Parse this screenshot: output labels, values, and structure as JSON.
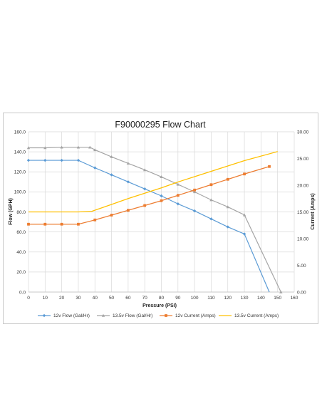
{
  "chart_data": {
    "type": "line",
    "title": "F90000295  Flow Chart",
    "xlabel": "Pressure (PSI)",
    "ylabel": "Flow (GPH)",
    "y2label": "Current (Amps)",
    "xlim": [
      0,
      160
    ],
    "ylim": [
      0,
      160
    ],
    "y2lim": [
      0,
      30
    ],
    "xticks": [
      "0",
      "10",
      "20",
      "30",
      "40",
      "50",
      "60",
      "70",
      "80",
      "90",
      "100",
      "110",
      "120",
      "130",
      "140",
      "150",
      "160"
    ],
    "yticks": [
      "0.0",
      "20.0",
      "40.0",
      "60.0",
      "80.0",
      "100.0",
      "120.0",
      "140.0",
      "160.0"
    ],
    "y2ticks": [
      "0.00",
      "5.00",
      "10.00",
      "15.00",
      "20.00",
      "25.00",
      "30.00"
    ],
    "grid": "vertical-and-horizontal",
    "legend_position": "bottom",
    "series": [
      {
        "name": "12v Flow (Gal/Hr)",
        "axis": "left",
        "color": "#5b9bd5",
        "marker": "diamond",
        "points": [
          [
            0,
            131.5
          ],
          [
            10,
            131.5
          ],
          [
            20,
            131.5
          ],
          [
            30,
            131.5
          ],
          [
            40,
            124
          ],
          [
            50,
            117
          ],
          [
            60,
            110
          ],
          [
            70,
            103
          ],
          [
            80,
            96
          ],
          [
            90,
            88
          ],
          [
            100,
            81
          ],
          [
            110,
            73
          ],
          [
            120,
            65
          ],
          [
            130,
            58
          ],
          [
            145,
            0
          ]
        ],
        "marked": [
          0,
          1,
          2,
          3,
          4,
          5,
          6,
          7,
          8,
          9,
          10,
          11,
          12,
          13
        ]
      },
      {
        "name": "13.5v Flow (Gal/Hr)",
        "axis": "left",
        "color": "#a5a5a5",
        "marker": "triangle",
        "points": [
          [
            0,
            144
          ],
          [
            10,
            144
          ],
          [
            20,
            144.5
          ],
          [
            30,
            144.5
          ],
          [
            37,
            144.5
          ],
          [
            40,
            142
          ],
          [
            50,
            135
          ],
          [
            60,
            128.5
          ],
          [
            70,
            122
          ],
          [
            80,
            115
          ],
          [
            90,
            107.5
          ],
          [
            100,
            100
          ],
          [
            110,
            92
          ],
          [
            120,
            85
          ],
          [
            130,
            77
          ],
          [
            152,
            0
          ]
        ],
        "marked": [
          0,
          1,
          2,
          3,
          4,
          5,
          6,
          7,
          8,
          9,
          10,
          11,
          12,
          13,
          14,
          15
        ]
      },
      {
        "name": "12v Current (Amps)",
        "axis": "right",
        "color": "#ed7d31",
        "marker": "square",
        "points": [
          [
            0,
            12.7
          ],
          [
            10,
            12.7
          ],
          [
            20,
            12.7
          ],
          [
            30,
            12.7
          ],
          [
            40,
            13.5
          ],
          [
            50,
            14.4
          ],
          [
            60,
            15.3
          ],
          [
            70,
            16.2
          ],
          [
            80,
            17.1
          ],
          [
            90,
            18.1
          ],
          [
            100,
            19.1
          ],
          [
            110,
            20.1
          ],
          [
            120,
            21.1
          ],
          [
            130,
            22.1
          ],
          [
            145,
            23.5
          ]
        ],
        "marked": [
          0,
          1,
          2,
          3,
          4,
          5,
          6,
          7,
          8,
          9,
          10,
          11,
          12,
          13,
          14
        ]
      },
      {
        "name": "13.5v Current (Amps)",
        "axis": "right",
        "color": "#ffc000",
        "marker": "none",
        "points": [
          [
            0,
            15
          ],
          [
            10,
            15
          ],
          [
            20,
            15
          ],
          [
            30,
            15
          ],
          [
            38,
            15.1
          ],
          [
            50,
            16.4
          ],
          [
            60,
            17.5
          ],
          [
            70,
            18.5
          ],
          [
            80,
            19.5
          ],
          [
            90,
            20.6
          ],
          [
            100,
            21.6
          ],
          [
            110,
            22.6
          ],
          [
            120,
            23.6
          ],
          [
            130,
            24.6
          ],
          [
            150,
            26.3
          ]
        ],
        "marked": []
      }
    ]
  }
}
